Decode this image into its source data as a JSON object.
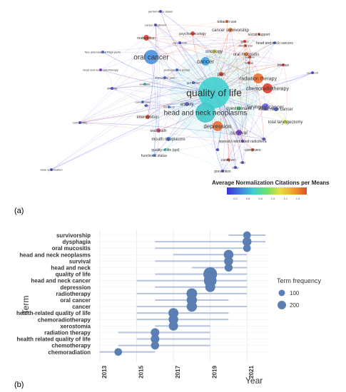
{
  "panel_a": {
    "panel_label": "(a)",
    "legend_title": "Average Normalization Citations per Means",
    "legend_ticks": [
      "0.4",
      "0.6",
      "0.8",
      "1.0",
      "1.2",
      "1.4"
    ],
    "legend_colors": [
      "#3b30d9",
      "#3f7fe0",
      "#3fd0d0",
      "#6ee06a",
      "#e6e040",
      "#f0a030",
      "#e05020"
    ]
  },
  "panel_b": {
    "panel_label": "(b)"
  },
  "chart_data": [
    {
      "type": "scatter",
      "title": "",
      "nodes": [
        {
          "label": "quality of life",
          "weight": 10,
          "color": "#40d0d0"
        },
        {
          "label": "oral cancer",
          "weight": 6,
          "color": "#4a8fe0"
        },
        {
          "label": "head and neck neoplasms",
          "weight": 6,
          "color": "#40c8c8"
        },
        {
          "label": "radiation therapy",
          "weight": 4,
          "color": "#f07030"
        },
        {
          "label": "chemoradiotherapy",
          "weight": 4,
          "color": "#e04030"
        },
        {
          "label": "laryngeal cancer",
          "weight": 3,
          "color": "#6a6ae0"
        },
        {
          "label": "depression",
          "weight": 4,
          "color": "#f07030"
        },
        {
          "label": "cancer",
          "weight": 4,
          "color": "#40a0e0"
        },
        {
          "label": "oncology",
          "weight": 2,
          "color": "#e0e040"
        },
        {
          "label": "oral mucositis",
          "weight": 2,
          "color": "#f08030"
        },
        {
          "label": "pain",
          "weight": 2,
          "color": "#e04030"
        },
        {
          "label": "anxiety",
          "weight": 2,
          "color": "#6a6ae0"
        },
        {
          "label": "intervention",
          "weight": 2,
          "color": "#e04030"
        },
        {
          "label": "survival",
          "weight": 2,
          "color": "#7a40d0"
        },
        {
          "label": "questionnaire",
          "weight": 2,
          "color": "#40d080"
        },
        {
          "label": "total laryngectomy",
          "weight": 2,
          "color": "#d0e040"
        },
        {
          "label": "head neck cancer",
          "weight": 2,
          "color": "#5060e0"
        },
        {
          "label": "oral health",
          "weight": 2,
          "color": "#e04060"
        },
        {
          "label": "mouth neoplasms",
          "weight": 2,
          "color": "#4a6ae0"
        },
        {
          "label": "intensity modulated radiothera",
          "weight": 1,
          "color": "#7a40d0"
        },
        {
          "label": "caregivers",
          "weight": 1,
          "color": "#e04030"
        },
        {
          "label": "quality of life (qol)",
          "weight": 1,
          "color": "#40d0d0"
        },
        {
          "label": "functional status",
          "weight": 1,
          "color": "#4a8fe0"
        },
        {
          "label": "caregiver",
          "weight": 1,
          "color": "#e04030"
        },
        {
          "label": "trismus",
          "weight": 1,
          "color": "#e04030"
        },
        {
          "label": "recurrent",
          "weight": 1,
          "color": "#4a4ae0"
        },
        {
          "label": "cancer survivorship",
          "weight": 2,
          "color": "#f07030"
        },
        {
          "label": "tobacco use",
          "weight": 1,
          "color": "#f07030"
        },
        {
          "label": "social support",
          "weight": 1,
          "color": "#e04030"
        },
        {
          "label": "head and neck cancers",
          "weight": 1,
          "color": "#4a6ae0"
        },
        {
          "label": "psycho-oncology",
          "weight": 1,
          "color": "#e04030"
        },
        {
          "label": "malnutrition",
          "weight": 1,
          "color": "#e04030"
        },
        {
          "label": "performance status",
          "weight": 1,
          "color": "#4a4ae0"
        },
        {
          "label": "cancer treatment",
          "weight": 1,
          "color": "#4a4ae0"
        },
        {
          "label": "free anterolateral thigh perfo",
          "weight": 1,
          "color": "#4a6ae0"
        },
        {
          "label": "head and neck radiotherapy",
          "weight": 1,
          "color": "#7a40d0"
        },
        {
          "label": "difficulty",
          "weight": 1,
          "color": "#4a4ae0"
        },
        {
          "label": "exercise",
          "weight": 1,
          "color": "#40c0c0"
        },
        {
          "label": "comorbidity",
          "weight": 1,
          "color": "#4a4ae0"
        },
        {
          "label": "dose optimisation",
          "weight": 1,
          "color": "#4a4ae0"
        },
        {
          "label": "prevention",
          "weight": 1,
          "color": "#4a4ae0"
        },
        {
          "label": "survivors",
          "weight": 1,
          "color": "#4a8fe0"
        },
        {
          "label": "care needs",
          "weight": 1,
          "color": "#4a4ae0"
        },
        {
          "label": "oral cancer pain",
          "weight": 1,
          "color": "#4a6ae0"
        },
        {
          "label": "postoperative period",
          "weight": 1,
          "color": "#4a6ae0"
        },
        {
          "label": "guidelines",
          "weight": 1,
          "color": "#4a6ae0"
        },
        {
          "label": "clinical trial",
          "weight": 1,
          "color": "#e04030"
        },
        {
          "label": "fatigue",
          "weight": 1,
          "color": "#e04030"
        },
        {
          "label": "cancer care",
          "weight": 1,
          "color": "#4a6ae0"
        },
        {
          "label": "hpv",
          "weight": 1,
          "color": "#4a6ae0"
        },
        {
          "label": "nutrition",
          "weight": 1,
          "color": "#e04030"
        },
        {
          "label": "life",
          "weight": 1,
          "color": "#4a4ae0"
        },
        {
          "label": "fear",
          "weight": 1,
          "color": "#4a4ae0"
        },
        {
          "label": "sleep",
          "weight": 1,
          "color": "#4a4ae0"
        },
        {
          "label": "speed",
          "weight": 1,
          "color": "#e04030"
        },
        {
          "label": "field",
          "weight": 1,
          "color": "#4a4ae0"
        }
      ],
      "colorbar": {
        "min": 0.4,
        "max": 1.4
      }
    },
    {
      "type": "scatter",
      "title": "",
      "xlabel": "Year",
      "ylabel": "Term",
      "xlim": [
        2013,
        2021
      ],
      "x_ticks": [
        "2013",
        "2015",
        "2017",
        "2019",
        "2021"
      ],
      "legend_title": "Term frequency",
      "legend_values": [
        100,
        200
      ],
      "legend_placement": "right",
      "terms": [
        {
          "term": "survivorship",
          "range": [
            2020,
            2022
          ],
          "year": 2021,
          "freq": 40
        },
        {
          "term": "dysphagia",
          "range": [
            2016,
            2022
          ],
          "year": 2021,
          "freq": 70
        },
        {
          "term": "oral mucositis",
          "range": [
            2016,
            2021
          ],
          "year": 2021,
          "freq": 40
        },
        {
          "term": "head and neck neoplasms",
          "range": [
            2017,
            2021
          ],
          "year": 2020,
          "freq": 90
        },
        {
          "term": "survival",
          "range": [
            2016,
            2021
          ],
          "year": 2020,
          "freq": 70
        },
        {
          "term": "head and neck",
          "range": [
            2018,
            2021
          ],
          "year": 2020,
          "freq": 50
        },
        {
          "term": "quality of life",
          "range": [
            2016,
            2021
          ],
          "year": 2019,
          "freq": 250
        },
        {
          "term": "head and neck cancer",
          "range": [
            2015,
            2021
          ],
          "year": 2019,
          "freq": 200
        },
        {
          "term": "depression",
          "range": [
            2016,
            2021
          ],
          "year": 2019,
          "freq": 100
        },
        {
          "term": "radiotherapy",
          "range": [
            2015,
            2021
          ],
          "year": 2018,
          "freq": 120
        },
        {
          "term": "oral cancer",
          "range": [
            2016,
            2020
          ],
          "year": 2018,
          "freq": 110
        },
        {
          "term": "cancer",
          "range": [
            2015,
            2021
          ],
          "year": 2018,
          "freq": 110
        },
        {
          "term": "health-related quality of life",
          "range": [
            2015,
            2020
          ],
          "year": 2017,
          "freq": 100
        },
        {
          "term": "chemoradiotherapy",
          "range": [
            2015,
            2020
          ],
          "year": 2017,
          "freq": 90
        },
        {
          "term": "xerostomia",
          "range": [
            2016,
            2019
          ],
          "year": 2017,
          "freq": 80
        },
        {
          "term": "radiation therapy",
          "range": [
            2014,
            2019
          ],
          "year": 2016,
          "freq": 60
        },
        {
          "term": "health related quality of life",
          "range": [
            2015,
            2019
          ],
          "year": 2016,
          "freq": 60
        },
        {
          "term": "chemotherapy",
          "range": [
            2014,
            2019
          ],
          "year": 2016,
          "freq": 50
        },
        {
          "term": "chemoradiation",
          "range": [
            2013,
            2016
          ],
          "year": 2014,
          "freq": 40
        }
      ]
    }
  ]
}
